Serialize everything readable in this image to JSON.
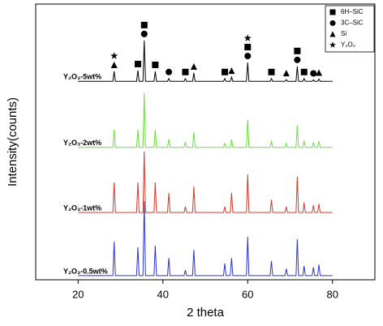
{
  "chart_data": {
    "type": "line",
    "x_label": "2 theta",
    "y_label": "Intensity(counts)",
    "xlim": [
      10,
      90
    ],
    "xticks": [
      20,
      40,
      60,
      80
    ],
    "ylim": [
      0,
      100
    ],
    "x": [
      20,
      28.2,
      28.5,
      28.8,
      33.8,
      34.1,
      34.4,
      35.3,
      35.6,
      35.9,
      37.9,
      38.2,
      38.5,
      41.1,
      41.4,
      41.7,
      45.0,
      45.3,
      45.6,
      47.0,
      47.3,
      47.6,
      54.3,
      54.6,
      54.9,
      55.9,
      56.2,
      56.5,
      59.7,
      60.0,
      60.3,
      65.3,
      65.6,
      65.9,
      68.8,
      69.1,
      69.4,
      71.4,
      71.7,
      72.0,
      73.0,
      73.3,
      73.6,
      75.2,
      75.5,
      75.8,
      76.5,
      76.8,
      77.1,
      80
    ],
    "series": [
      {
        "name": "Y₂O₃-5wt%",
        "color": "#000000",
        "values": [
          72,
          72,
          75.6,
          72,
          72,
          75.9,
          72,
          72,
          86.8,
          72,
          72,
          75.6,
          72,
          72,
          73,
          72,
          72,
          73,
          72,
          72,
          75,
          72,
          72,
          73,
          72,
          72,
          73.5,
          72,
          72,
          78.8,
          72,
          72,
          73,
          72,
          72,
          72.6,
          72,
          72,
          77.4,
          72,
          72,
          73,
          72,
          72,
          72.5,
          72,
          72,
          72.8,
          72,
          72
        ]
      },
      {
        "name": "Y₂O₃-2wt%",
        "color": "#66e03a",
        "values": [
          48,
          48,
          54.4,
          48,
          48,
          54.4,
          48,
          48,
          67.6,
          48,
          48,
          54.4,
          48,
          48,
          50.9,
          48,
          48,
          50,
          48,
          48,
          53.5,
          48,
          48,
          49.5,
          48,
          48,
          50.9,
          48,
          48,
          58,
          48,
          48,
          50.5,
          48,
          48,
          49.5,
          48,
          48,
          55.9,
          48,
          48,
          50.5,
          48,
          48,
          49.8,
          48,
          48,
          50.2,
          48,
          48
        ]
      },
      {
        "name": "Y₂O₃-1wt%",
        "color": "#d03a2a",
        "values": [
          24.4,
          24.4,
          35.3,
          24.4,
          24.4,
          35.3,
          24.4,
          24.4,
          46.5,
          24.4,
          24.4,
          35.3,
          24.4,
          24.4,
          31.5,
          24.4,
          24.4,
          26.5,
          24.4,
          24.4,
          33.8,
          24.4,
          24.4,
          26.5,
          24.4,
          24.4,
          31.5,
          24.4,
          24.4,
          38.2,
          24.4,
          24.4,
          29,
          24.4,
          24.4,
          26.5,
          24.4,
          24.4,
          37.4,
          24.4,
          24.4,
          28,
          24.4,
          24.4,
          27,
          24.4,
          24.4,
          27.5,
          24.4,
          24.4
        ]
      },
      {
        "name": "Y₂O₃-0.5wt%",
        "color": "#2a35d0",
        "values": [
          1.5,
          1.5,
          13.8,
          1.5,
          1.5,
          11.8,
          1.5,
          1.5,
          28.5,
          1.5,
          1.5,
          12.4,
          1.5,
          1.5,
          7.9,
          1.5,
          1.5,
          3.5,
          1.5,
          1.5,
          10.9,
          1.5,
          1.5,
          5.9,
          1.5,
          1.5,
          7.9,
          1.5,
          1.5,
          15.6,
          1.5,
          1.5,
          6.8,
          1.5,
          1.5,
          4,
          1.5,
          1.5,
          14.7,
          1.5,
          1.5,
          5,
          1.5,
          1.5,
          4.5,
          1.5,
          1.5,
          5.5,
          1.5,
          1.5
        ]
      }
    ],
    "legend": [
      {
        "label": "6H–SiC",
        "shape": "square"
      },
      {
        "label": "3C–SiC",
        "shape": "circle"
      },
      {
        "label": "Si",
        "shape": "triangle"
      },
      {
        "label": "Y₂O₃",
        "shape": "star"
      }
    ],
    "markers": [
      {
        "x": 28.5,
        "y": 75.6,
        "shapes": [
          "triangle",
          "star"
        ]
      },
      {
        "x": 34.1,
        "y": 75.9,
        "shapes": [
          "square"
        ]
      },
      {
        "x": 35.6,
        "y": 86.8,
        "shapes": [
          "circle",
          "square"
        ]
      },
      {
        "x": 38.2,
        "y": 75.6,
        "shapes": [
          "square"
        ]
      },
      {
        "x": 41.4,
        "y": 73,
        "shapes": [
          "circle"
        ]
      },
      {
        "x": 45.3,
        "y": 73,
        "shapes": [
          "square"
        ]
      },
      {
        "x": 47.3,
        "y": 75,
        "shapes": [
          "triangle"
        ]
      },
      {
        "x": 54.6,
        "y": 73,
        "shapes": [
          "square"
        ]
      },
      {
        "x": 56.2,
        "y": 73.5,
        "shapes": [
          "triangle"
        ]
      },
      {
        "x": 60.0,
        "y": 78.8,
        "shapes": [
          "circle",
          "square",
          "star"
        ]
      },
      {
        "x": 65.6,
        "y": 73,
        "shapes": [
          "square"
        ]
      },
      {
        "x": 69.1,
        "y": 72.6,
        "shapes": [
          "triangle"
        ]
      },
      {
        "x": 71.7,
        "y": 77.4,
        "shapes": [
          "circle",
          "square"
        ]
      },
      {
        "x": 73.3,
        "y": 73,
        "shapes": [
          "square"
        ]
      },
      {
        "x": 75.5,
        "y": 72.5,
        "shapes": [
          "circle"
        ]
      },
      {
        "x": 76.8,
        "y": 72.8,
        "shapes": [
          "triangle"
        ]
      }
    ]
  }
}
